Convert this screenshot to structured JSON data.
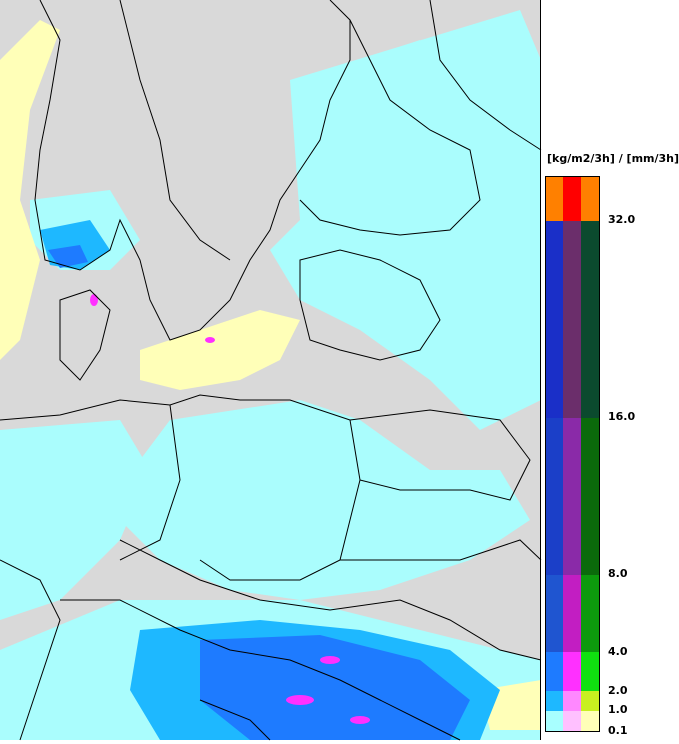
{
  "legend": {
    "unit_label": "[kg/m2/3h] / [mm/3h]",
    "ticks": [
      "32.0",
      "16.0",
      "8.0",
      "4.0",
      "2.0",
      "1.0",
      "0.1"
    ],
    "rows": [
      {
        "colors": [
          "#ff8000",
          "#ff0000",
          "#ff8000"
        ]
      },
      {
        "colors": [
          "#1a2fc8",
          "#6b2e6b",
          "#0b4a2e"
        ]
      },
      {
        "colors": [
          "#1b3fc8",
          "#8a2aa8",
          "#0b6a0b"
        ]
      },
      {
        "colors": [
          "#1f55d0",
          "#c21ec2",
          "#0d9a0d"
        ]
      },
      {
        "colors": [
          "#1e7bff",
          "#ff30ff",
          "#10e010"
        ]
      },
      {
        "colors": [
          "#1eb8ff",
          "#ff88ff",
          "#c8f020"
        ]
      },
      {
        "colors": [
          "#a8ffff",
          "#ffc0ff",
          "#ffffb8"
        ]
      }
    ]
  },
  "colors": {
    "land": "#d9d9d9",
    "rain_light": "#a8ffff",
    "snow_light": "#ffffb8",
    "rain_mid": "#1eb8ff",
    "rain_heavy": "#1e7bff",
    "mixed": "#ff30ff",
    "border": "#000000"
  }
}
